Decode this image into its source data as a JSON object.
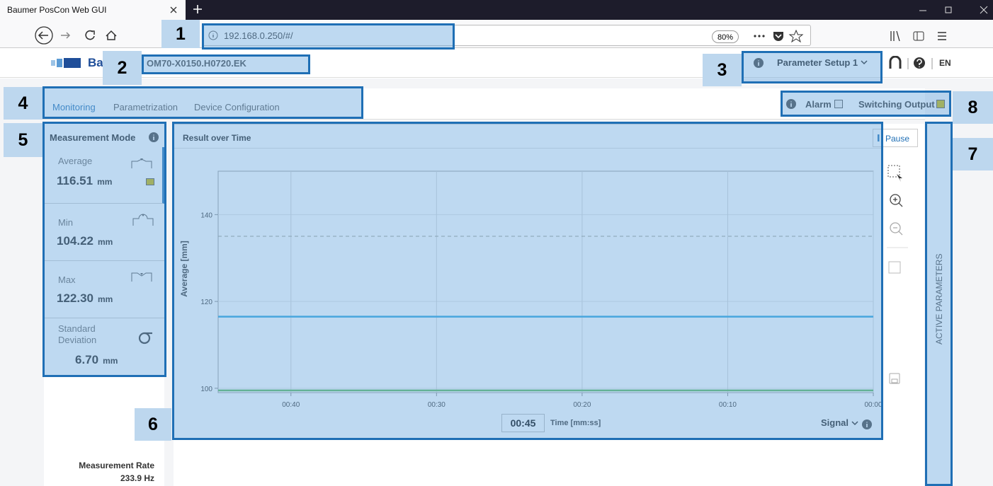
{
  "browser": {
    "tab_title": "Baumer PosCon Web GUI",
    "url": "192.168.0.250/#/",
    "zoom": "80%"
  },
  "header": {
    "logo": "Baumer",
    "device": "OM70-X0150.H0720.EK",
    "parameter_setup": "Parameter Setup 1",
    "language": "EN"
  },
  "tabs": [
    "Monitoring",
    "Parametrization",
    "Device Configuration"
  ],
  "status": {
    "alarm": "Alarm",
    "switching_output": "Switching Output"
  },
  "measurement_mode": {
    "title": "Measurement Mode",
    "items": [
      {
        "label": "Average",
        "value": "116.51",
        "unit": "mm"
      },
      {
        "label": "Min",
        "value": "104.22",
        "unit": "mm"
      },
      {
        "label": "Max",
        "value": "122.30",
        "unit": "mm"
      },
      {
        "label": "Standard Deviation",
        "value": "6.70",
        "unit": "mm"
      }
    ],
    "rate_label": "Measurement Rate",
    "rate_value": "233.9 Hz"
  },
  "chart": {
    "type": "line",
    "title": "Result over Time",
    "pause": "Pause",
    "y_label": "Average [mm]",
    "x_label": "Time [mm:ss]",
    "window": "00:45",
    "signal": "Signal",
    "ylim": [
      99,
      150
    ],
    "yticks": [
      100,
      120,
      140
    ],
    "xlim": [
      45,
      0
    ],
    "xticks": [
      {
        "value": 40,
        "label": "00:40"
      },
      {
        "value": 30,
        "label": "00:30"
      },
      {
        "value": 20,
        "label": "00:20"
      },
      {
        "value": 10,
        "label": "00:10"
      },
      {
        "value": 0,
        "label": "00:00"
      }
    ],
    "x": [
      45,
      0
    ],
    "series": [
      {
        "color": "#29a3dc",
        "values": [
          116.5,
          116.5
        ]
      },
      {
        "color": "#9a9a8a",
        "dashed": true,
        "values": [
          135,
          135
        ]
      },
      {
        "color": "#5cb85c",
        "values": [
          99.5,
          99.5
        ]
      }
    ]
  },
  "side_panel": "ACTIVE PARAMETERS",
  "callouts": [
    "1",
    "2",
    "3",
    "4",
    "5",
    "6",
    "7",
    "8"
  ]
}
